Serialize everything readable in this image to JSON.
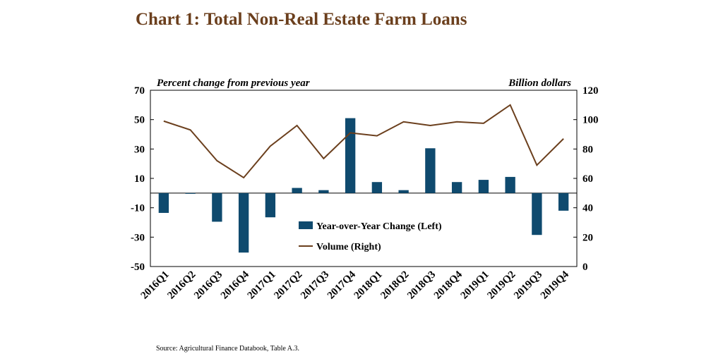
{
  "chart_data": {
    "type": "bar+line",
    "title": "Chart 1: Total Non-Real Estate Farm Loans",
    "left_axis_label": "Percent change from previous year",
    "right_axis_label": "Billion dollars",
    "categories": [
      "2016Q1",
      "2016Q2",
      "2016Q3",
      "2016Q4",
      "2017Q1",
      "2017Q2",
      "2017Q3",
      "2017Q4",
      "2018Q1",
      "2018Q2",
      "2018Q3",
      "2018Q4",
      "2019Q1",
      "2019Q2",
      "2019Q3",
      "2019Q4"
    ],
    "left_ylim": [
      -50,
      70
    ],
    "left_ticks": [
      70,
      50,
      30,
      10,
      -10,
      -30,
      -50
    ],
    "left_tick_labels": [
      "70",
      "50",
      "30",
      "10",
      "-10",
      "-30",
      "-50"
    ],
    "right_ylim": [
      0,
      120
    ],
    "right_ticks": [
      120,
      100,
      80,
      60,
      40,
      20,
      0
    ],
    "right_tick_labels": [
      "120",
      "100",
      "80",
      "60",
      "40",
      "20",
      "0"
    ],
    "series": [
      {
        "name": "Year-over-Year Change (Left)",
        "type": "bar",
        "axis": "left",
        "color": "#0f4a6e",
        "values": [
          -13.5,
          -0.5,
          -19.5,
          -40.5,
          -16.5,
          3.5,
          2.0,
          51.0,
          7.5,
          2.0,
          30.5,
          7.5,
          9.0,
          11.0,
          -28.5,
          -12.0
        ]
      },
      {
        "name": "Volume (Right)",
        "type": "line",
        "axis": "right",
        "color": "#6b3f1d",
        "values": [
          99,
          93,
          72,
          60.5,
          82,
          96,
          73.5,
          91,
          89,
          98.5,
          96,
          98.5,
          97.5,
          110,
          69,
          87
        ]
      }
    ],
    "legend_position": "inside-bottom-right",
    "grid": false
  },
  "footer": {
    "source": "Source: Agricultural Finance Databook, Table A.3."
  }
}
